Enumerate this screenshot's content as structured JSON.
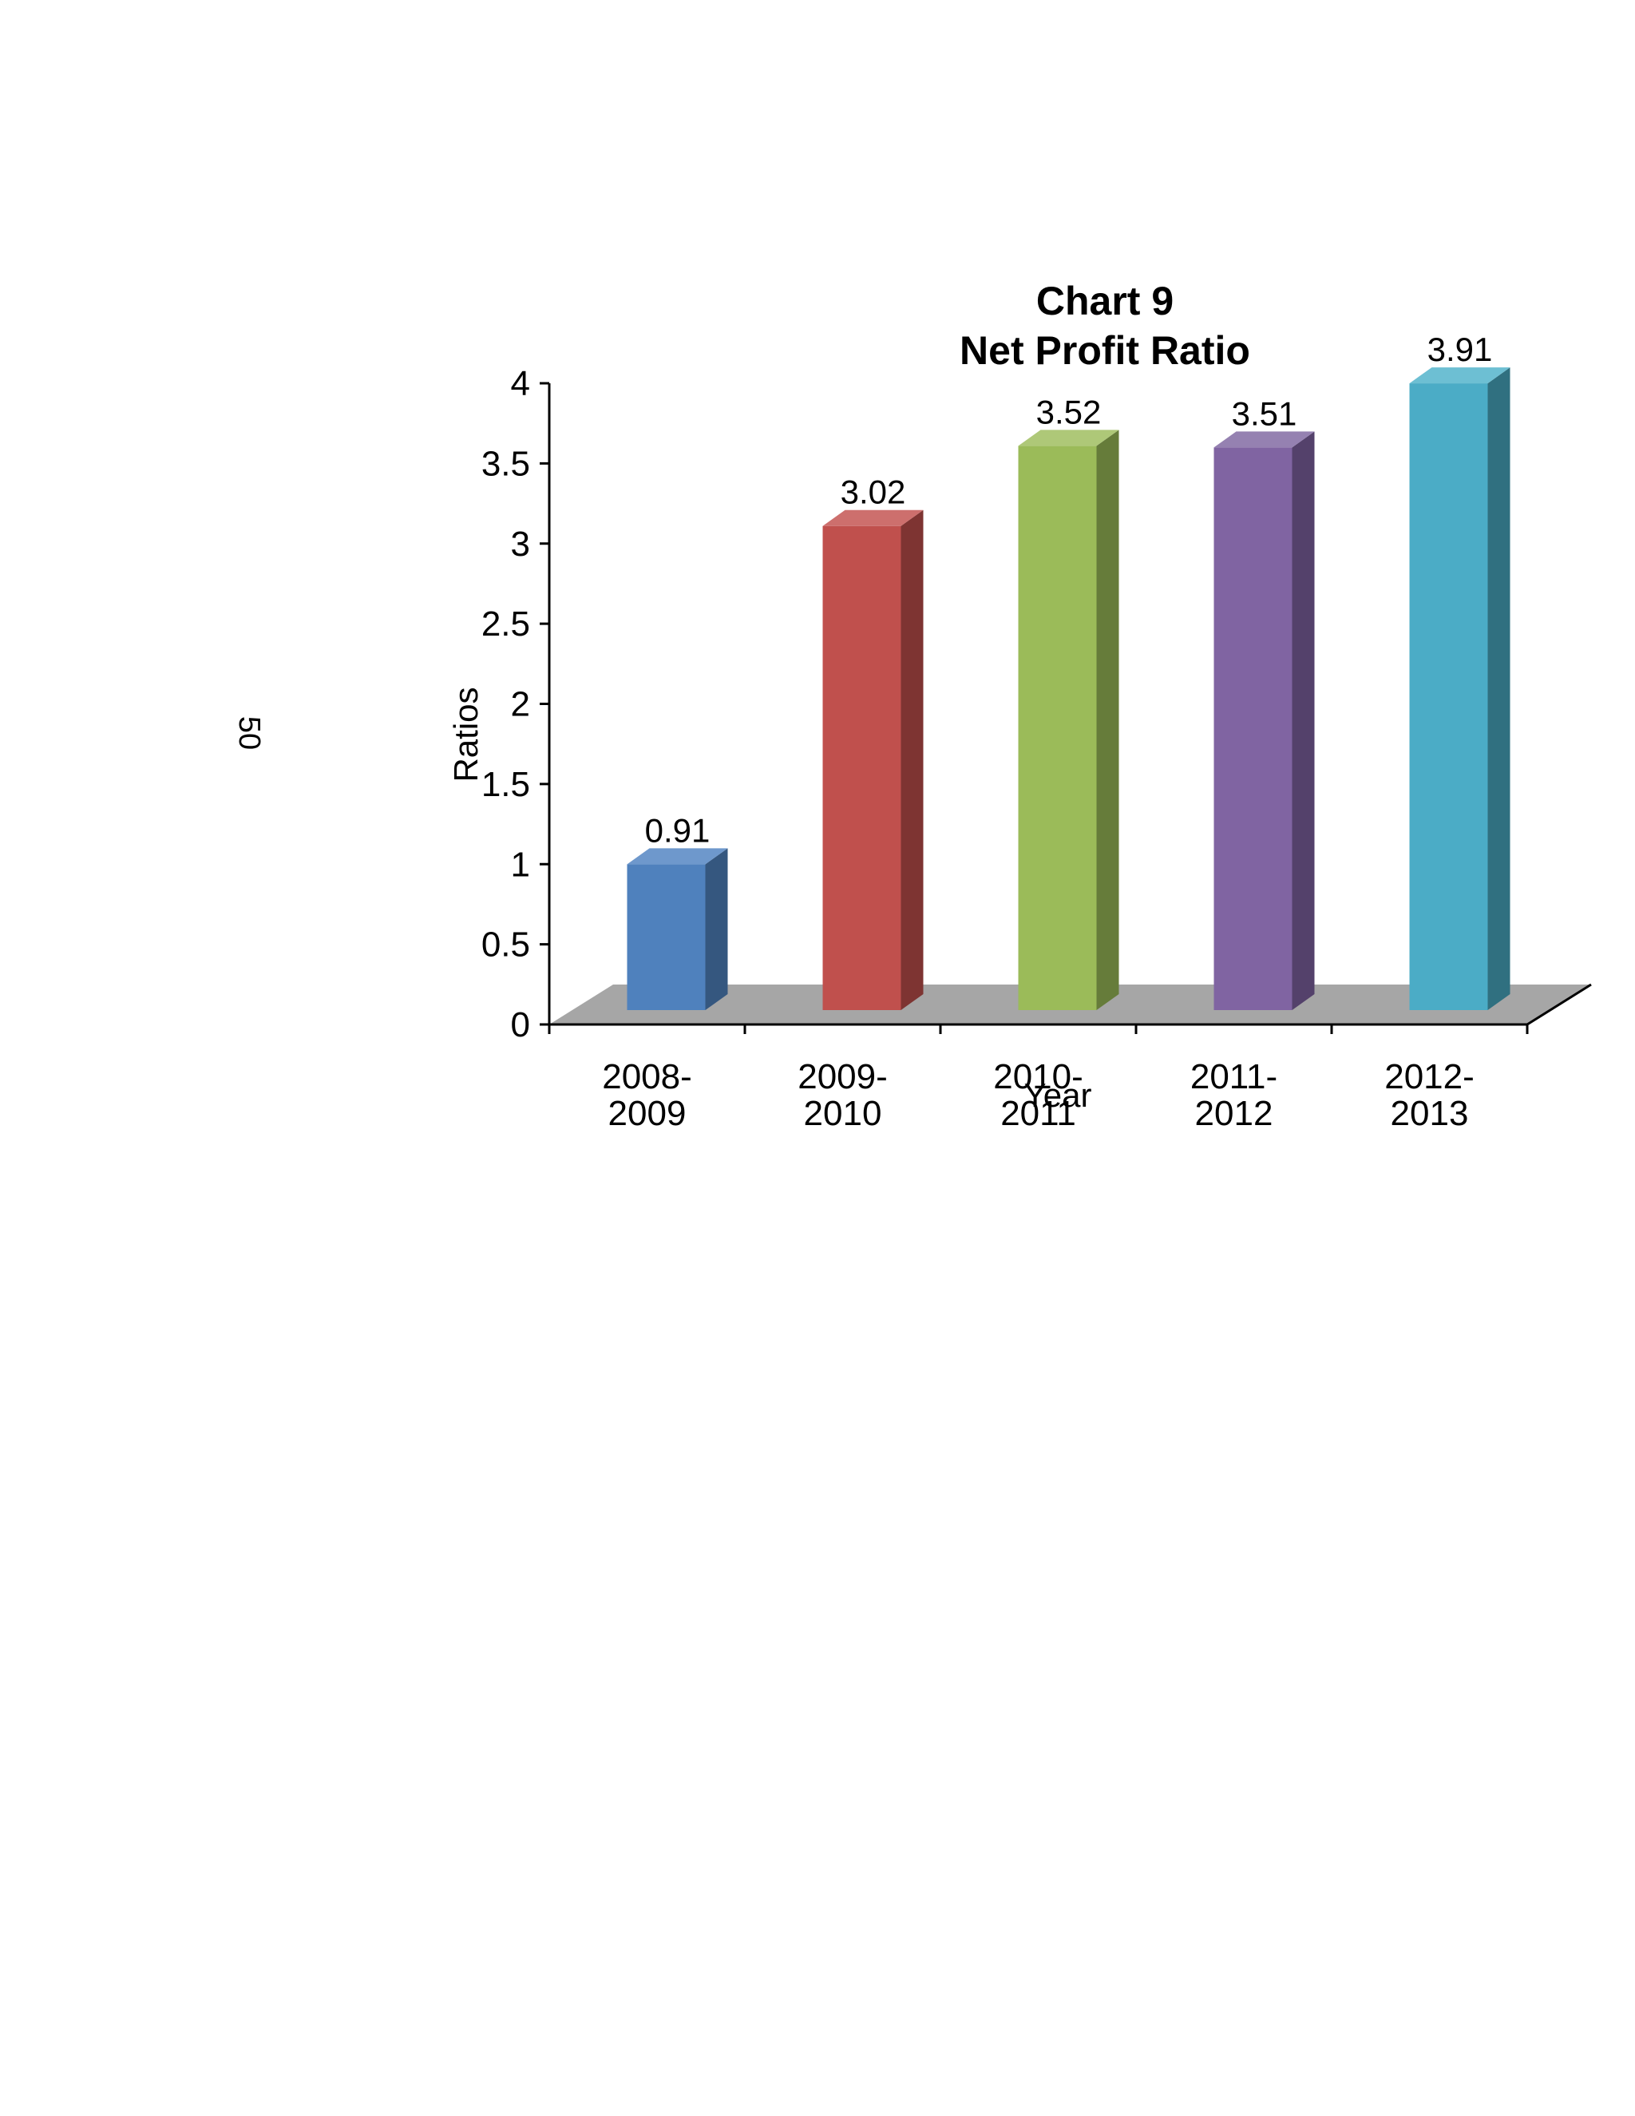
{
  "page_number": "50",
  "chart_data": {
    "type": "bar",
    "title_line1": "Chart 9",
    "title_line2": "Net Profit Ratio",
    "xlabel": "Year",
    "ylabel": "Ratios",
    "categories": [
      [
        "2008-",
        "2009"
      ],
      [
        "2009-",
        "2010"
      ],
      [
        "2010-",
        "2011"
      ],
      [
        "2011-",
        "2012"
      ],
      [
        "2012-",
        "2013"
      ]
    ],
    "values": [
      0.91,
      3.02,
      3.52,
      3.51,
      3.91
    ],
    "value_labels": [
      "0.91",
      "3.02",
      "3.52",
      "3.51",
      "3.91"
    ],
    "ylim": [
      0,
      4
    ],
    "yticks": [
      "0",
      "0.5",
      "1",
      "1.5",
      "2",
      "2.5",
      "3",
      "3.5",
      "4"
    ],
    "legend": "none",
    "grid": false,
    "style": "3d-column",
    "colors": [
      "#4F81BD",
      "#C0504D",
      "#9BBB59",
      "#8064A2",
      "#4BACC6"
    ],
    "side_colors": [
      "#35577F",
      "#7E3432",
      "#667C3A",
      "#54416B",
      "#307080"
    ],
    "top_colors": [
      "#6E98CC",
      "#CD6F6D",
      "#AEC878",
      "#9581B1",
      "#6DBFD3"
    ],
    "floor_color": "#A6A6A6"
  }
}
